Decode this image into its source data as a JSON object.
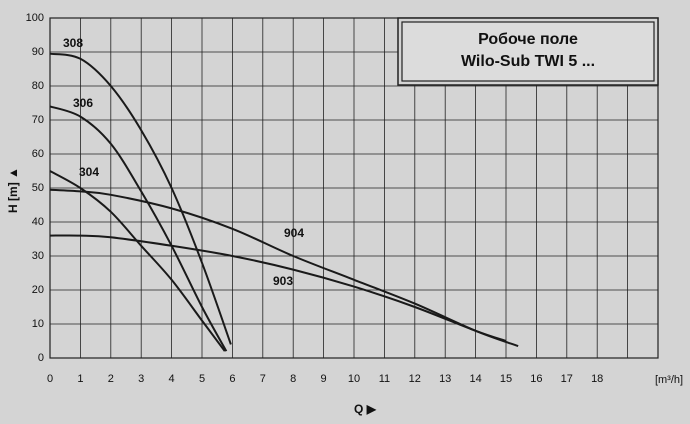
{
  "chart_data": {
    "type": "line",
    "title": [
      "Робоче поле",
      "Wilo-Sub TWI 5 ..."
    ],
    "x_label": "Q ▶",
    "x_unit": "[m³/h]",
    "y_label": "H [m] ▲",
    "xlim": [
      0,
      20
    ],
    "xticks": [
      0,
      1,
      2,
      3,
      4,
      5,
      6,
      7,
      8,
      9,
      10,
      11,
      12,
      13,
      14,
      15,
      16,
      17,
      18
    ],
    "ylim": [
      0,
      100
    ],
    "yticks": [
      0,
      10,
      20,
      30,
      40,
      50,
      60,
      70,
      80,
      90,
      100
    ],
    "grid": true,
    "color": "#1a1a1a",
    "series": [
      {
        "name": "308",
        "x": [
          0,
          1,
          2,
          3,
          4,
          5,
          5.95
        ],
        "values": [
          89.5,
          88,
          80,
          67,
          50,
          28,
          4
        ]
      },
      {
        "name": "306",
        "x": [
          0,
          1,
          2,
          3,
          4,
          5,
          5.8
        ],
        "values": [
          74,
          71,
          63,
          49,
          33,
          15,
          2
        ]
      },
      {
        "name": "304",
        "x": [
          0,
          1,
          2,
          3,
          4,
          5,
          5.75
        ],
        "values": [
          55,
          50,
          43,
          33,
          23,
          11,
          2
        ]
      },
      {
        "name": "904",
        "x": [
          0,
          1,
          2,
          4,
          6,
          8,
          10,
          12,
          14,
          15.4
        ],
        "values": [
          49.5,
          49,
          48,
          44,
          38,
          30,
          23,
          16,
          8,
          3.5
        ]
      },
      {
        "name": "903",
        "x": [
          0,
          1,
          2,
          4,
          6,
          8,
          10,
          12,
          14,
          15
        ],
        "values": [
          36,
          36,
          35.5,
          33,
          30,
          26,
          21,
          15,
          8,
          5
        ]
      }
    ]
  }
}
